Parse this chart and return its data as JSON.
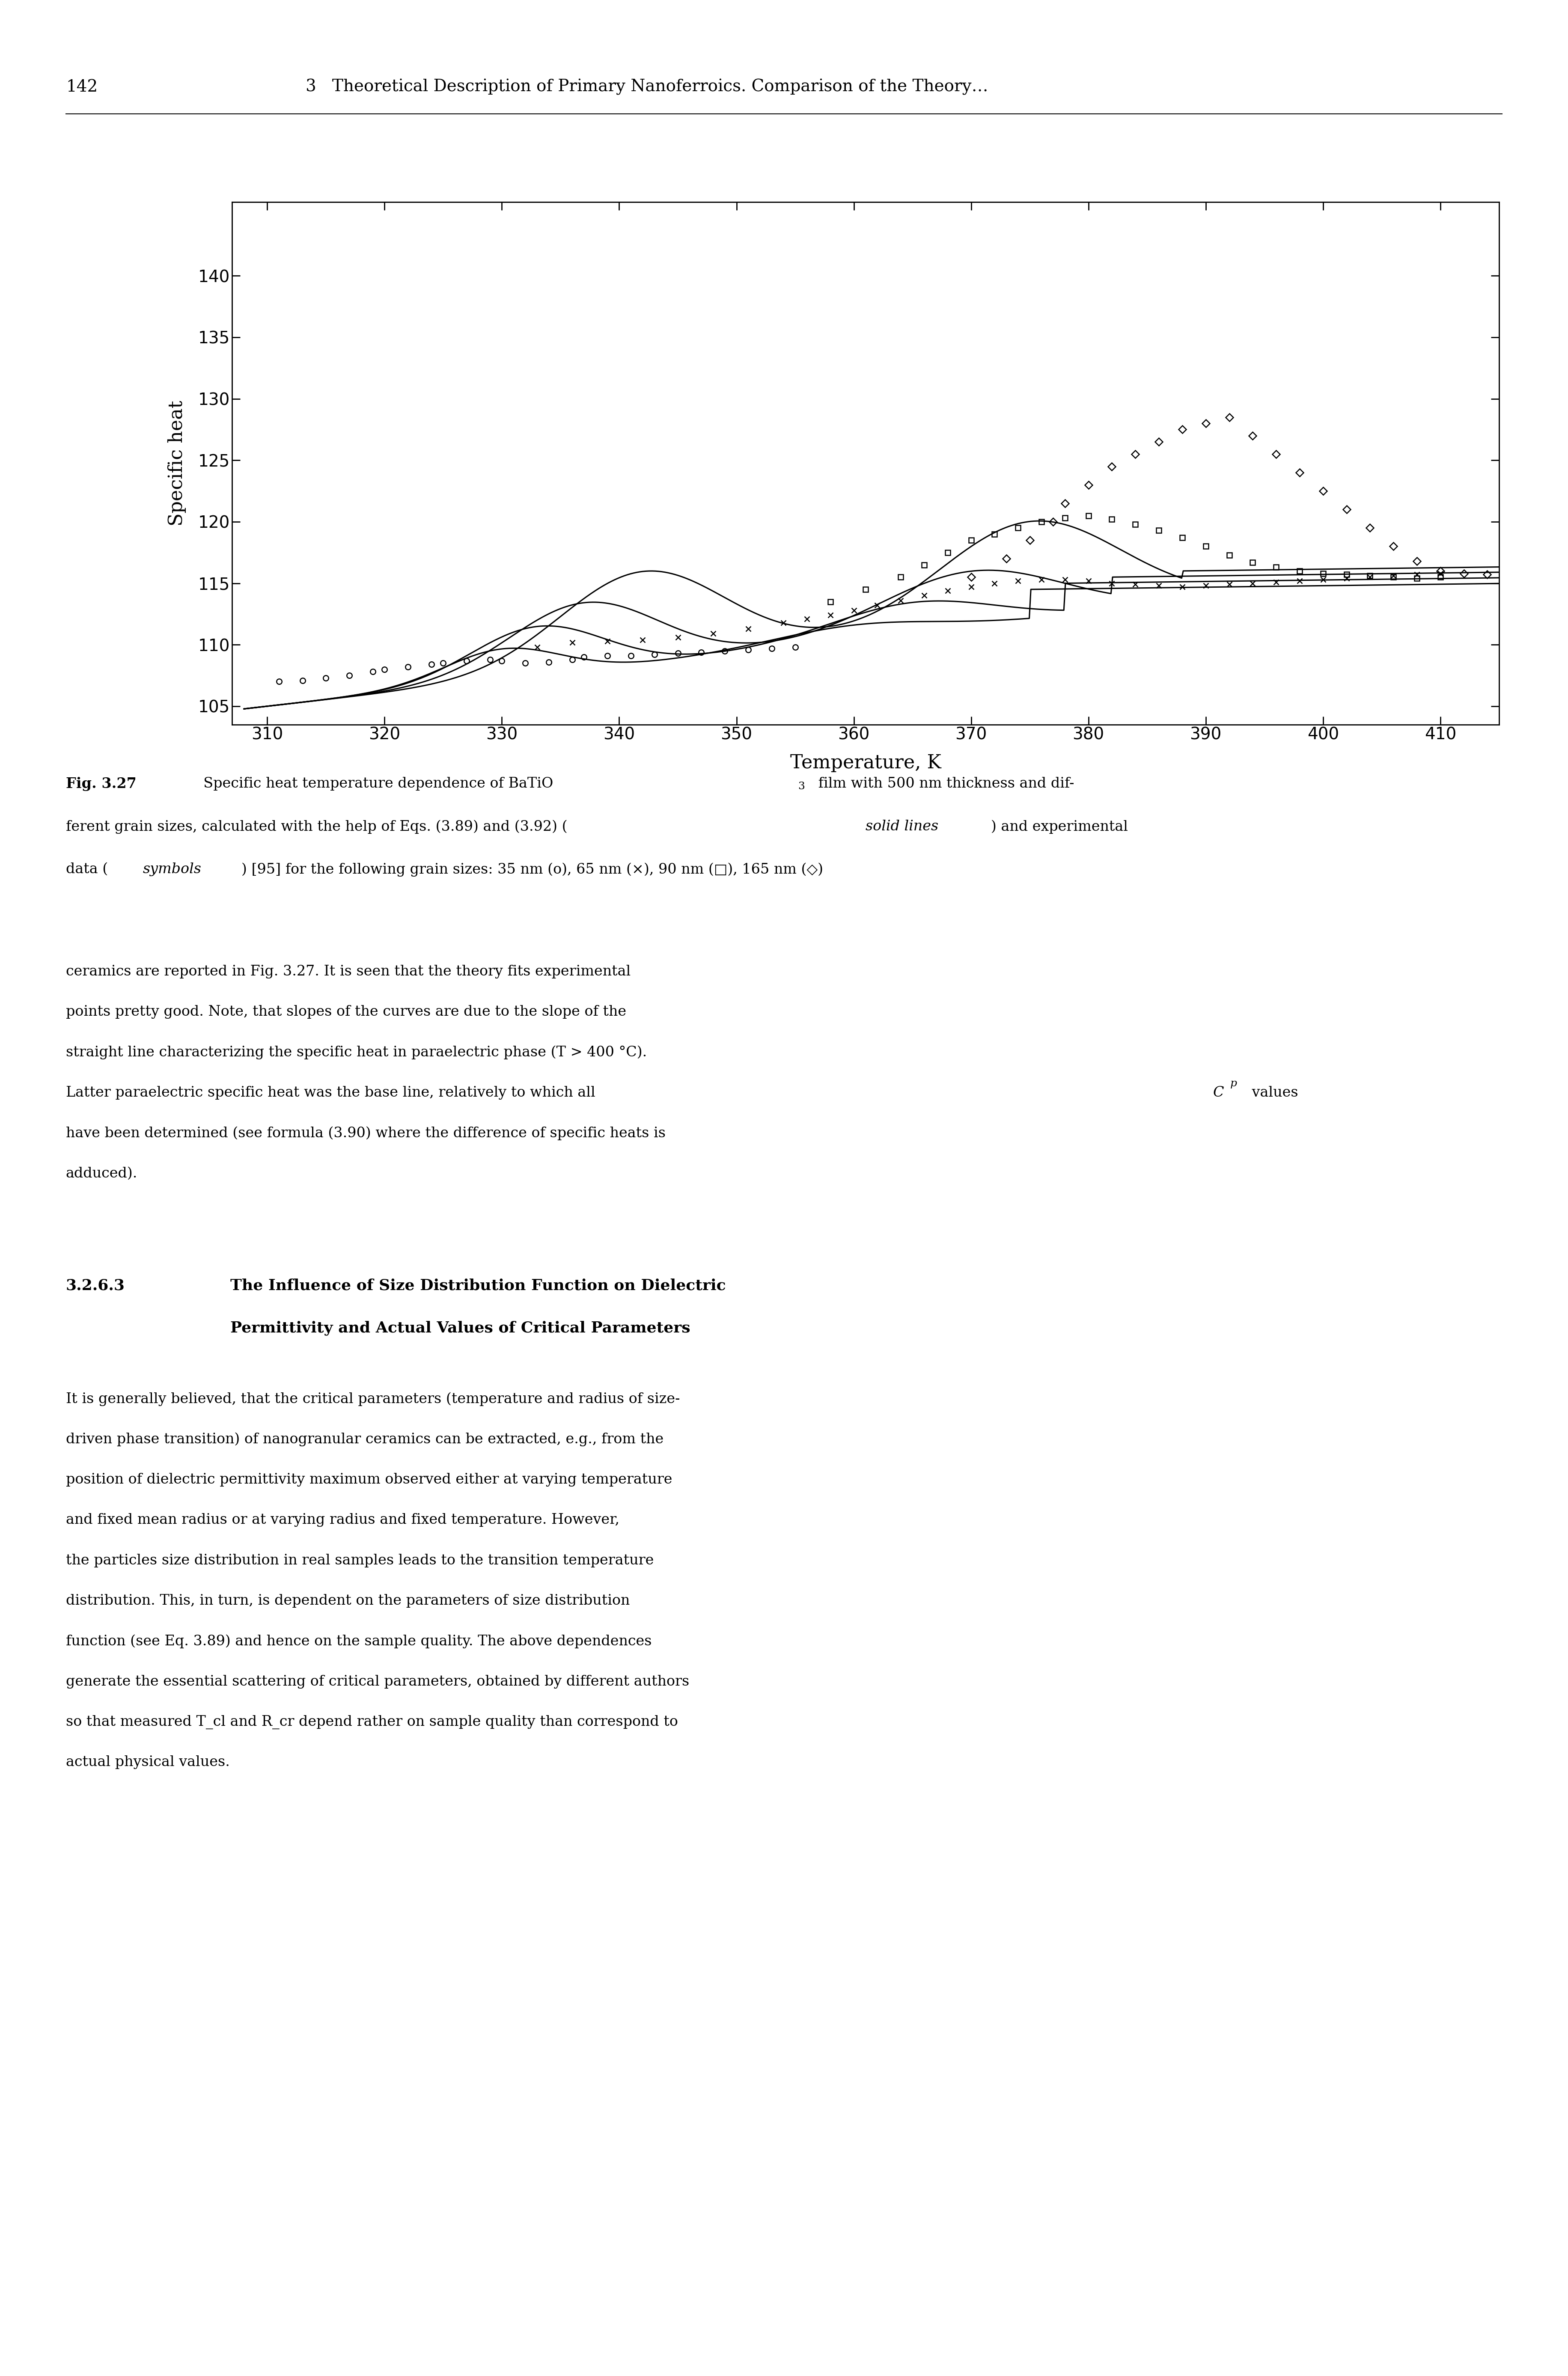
{
  "xlabel": "Temperature, K",
  "ylabel": "Specific heat",
  "xlim": [
    307,
    415
  ],
  "ylim": [
    103.5,
    146
  ],
  "xticks": [
    310,
    320,
    330,
    340,
    350,
    360,
    370,
    380,
    390,
    400,
    410
  ],
  "yticks": [
    105,
    110,
    115,
    120,
    125,
    130,
    135,
    140
  ],
  "page_number": "142",
  "chapter_title": "3   Theoretical Description of Primary Nanoferroics. Comparison of the Theory…",
  "caption": [
    {
      "text": "Fig. 3.27",
      "bold": true,
      "italic": false
    },
    {
      "text": "  Specific heat temperature dependence of BaTiO",
      "bold": false,
      "italic": false
    },
    {
      "text": "3",
      "bold": false,
      "italic": false,
      "sup": true
    },
    {
      "text": " film with 500 nm thickness and dif-",
      "bold": false,
      "italic": false
    },
    {
      "text": "ferent grain sizes, calculated with the help of Eqs. (3.89) and (3.92) (",
      "bold": false,
      "italic": false
    },
    {
      "text": "solid lines",
      "bold": false,
      "italic": true
    },
    {
      "text": ") and experimental",
      "bold": false,
      "italic": false
    },
    {
      "text": "data (",
      "bold": false,
      "italic": false
    },
    {
      "text": "symbols",
      "bold": false,
      "italic": true
    },
    {
      "text": ") [95] for the following grain sizes: 35 nm (o), 65 nm (×), 90 nm (□), 165 nm (◇)",
      "bold": false,
      "italic": false
    }
  ],
  "body1": [
    "ceramics are reported in Fig. 3.27. It is seen that the theory fits experimental",
    "points pretty good. Note, that slopes of the curves are due to the slope of the",
    "straight line characterizing the specific heat in paraelectric phase (T > 400 °C).",
    "Latter paraelectric specific heat was the base line, relatively to which all C_p values",
    "have been determined (see formula (3.90) where the difference of specific heats is",
    "adduced)."
  ],
  "section_num": "3.2.6.3",
  "section_title1": "The Influence of Size Distribution Function on Dielectric",
  "section_title2": "Permittivity and Actual Values of Critical Parameters",
  "body2": [
    "It is generally believed, that the critical parameters (temperature and radius of size-",
    "driven phase transition) of nanogranular ceramics can be extracted, e.g., from the",
    "position of dielectric permittivity maximum observed either at varying temperature",
    "and fixed mean radius or at varying radius and fixed temperature. However,",
    "the particles size distribution in real samples leads to the transition temperature",
    "distribution. This, in turn, is dependent on the parameters of size distribution",
    "function (see Eq. 3.89) and hence on the sample quality. The above dependences",
    "generate the essential scattering of critical parameters, obtained by different authors",
    "so that measured T_cl and R_cr depend rather on sample quality than correspond to",
    "actual physical values."
  ]
}
